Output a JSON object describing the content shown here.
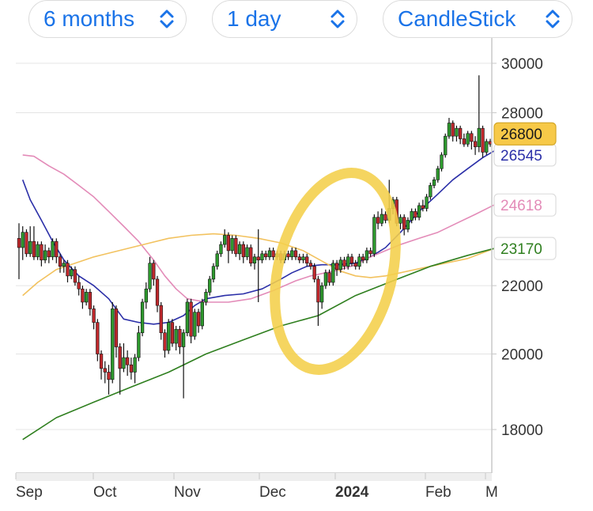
{
  "toolbar": {
    "range": {
      "label": "6 months",
      "icon": "chevron-updown-icon"
    },
    "interval": {
      "label": "1 day",
      "icon": "chevron-updown-icon"
    },
    "chart_type": {
      "label": "CandleStick",
      "icon": "chevron-updown-icon"
    }
  },
  "colors": {
    "accent": "#1a73e8",
    "up": "#2e9a2e",
    "down": "#c0282c",
    "ma_blue": "#2b2fa8",
    "ma_pink": "#e38bb8",
    "ma_orange": "#f2c25f",
    "ma_green": "#2f7f1f",
    "highlight": "#f4cf4a"
  },
  "chart_data": {
    "type": "candlestick",
    "y_axis": {
      "ticks": [
        "30000",
        "28000",
        "22000",
        "20000",
        "18000"
      ]
    },
    "x_axis": {
      "ticks": [
        "Sep",
        "Oct",
        "Nov",
        "Dec",
        "2024",
        "Feb",
        "M"
      ]
    },
    "price_tags": [
      {
        "text": "26800",
        "value": 26800,
        "style": "current"
      },
      {
        "text": "26545",
        "value": 26545,
        "style": "ma_blue"
      },
      {
        "text": "24618",
        "value": 24618,
        "style": "ma_pink"
      },
      {
        "text": "23170",
        "value": 23170,
        "style": "ma_green"
      }
    ],
    "series": [
      {
        "color_key": "ma_blue",
        "points": [
          [
            1,
            25500
          ],
          [
            3,
            24800
          ],
          [
            6,
            24100
          ],
          [
            9,
            23400
          ],
          [
            12,
            22800
          ],
          [
            16,
            22300
          ],
          [
            20,
            22000
          ],
          [
            24,
            21600
          ],
          [
            28,
            21000
          ],
          [
            32,
            20900
          ],
          [
            36,
            20850
          ],
          [
            40,
            20900
          ],
          [
            44,
            21100
          ],
          [
            47,
            21400
          ],
          [
            50,
            21600
          ],
          [
            55,
            21700
          ],
          [
            60,
            21750
          ],
          [
            65,
            21900
          ],
          [
            70,
            22200
          ],
          [
            73,
            22400
          ],
          [
            77,
            22600
          ],
          [
            81,
            22650
          ],
          [
            85,
            22650
          ],
          [
            90,
            22700
          ],
          [
            94,
            22900
          ],
          [
            98,
            23200
          ],
          [
            102,
            23700
          ],
          [
            107,
            24400
          ],
          [
            112,
            25000
          ],
          [
            116,
            25500
          ],
          [
            120,
            25900
          ],
          [
            124,
            26300
          ],
          [
            127,
            26545
          ]
        ]
      },
      {
        "color_key": "ma_pink",
        "points": [
          [
            1,
            26400
          ],
          [
            4,
            26350
          ],
          [
            8,
            26000
          ],
          [
            12,
            25700
          ],
          [
            16,
            25300
          ],
          [
            20,
            24900
          ],
          [
            24,
            24400
          ],
          [
            28,
            23900
          ],
          [
            32,
            23400
          ],
          [
            36,
            22800
          ],
          [
            39,
            22300
          ],
          [
            42,
            21900
          ],
          [
            45,
            21600
          ],
          [
            50,
            21500
          ],
          [
            56,
            21500
          ],
          [
            62,
            21600
          ],
          [
            68,
            21850
          ],
          [
            74,
            22150
          ],
          [
            78,
            22300
          ],
          [
            82,
            22400
          ],
          [
            86,
            22500
          ],
          [
            90,
            22650
          ],
          [
            94,
            22900
          ],
          [
            98,
            23100
          ],
          [
            102,
            23300
          ],
          [
            107,
            23500
          ],
          [
            112,
            23700
          ],
          [
            117,
            24000
          ],
          [
            122,
            24300
          ],
          [
            127,
            24618
          ]
        ]
      },
      {
        "color_key": "ma_orange",
        "points": [
          [
            1,
            21700
          ],
          [
            5,
            22100
          ],
          [
            10,
            22500
          ],
          [
            15,
            22700
          ],
          [
            20,
            22900
          ],
          [
            25,
            23050
          ],
          [
            30,
            23200
          ],
          [
            35,
            23350
          ],
          [
            40,
            23500
          ],
          [
            46,
            23600
          ],
          [
            52,
            23650
          ],
          [
            58,
            23600
          ],
          [
            64,
            23500
          ],
          [
            70,
            23350
          ],
          [
            76,
            23100
          ],
          [
            82,
            22700
          ],
          [
            86,
            22450
          ],
          [
            90,
            22300
          ],
          [
            94,
            22250
          ],
          [
            98,
            22300
          ],
          [
            102,
            22400
          ],
          [
            108,
            22550
          ],
          [
            114,
            22700
          ],
          [
            120,
            22850
          ],
          [
            127,
            23170
          ]
        ]
      },
      {
        "color_key": "ma_green",
        "points": [
          [
            1,
            17750
          ],
          [
            10,
            18300
          ],
          [
            20,
            18700
          ],
          [
            30,
            19100
          ],
          [
            40,
            19500
          ],
          [
            50,
            20000
          ],
          [
            60,
            20400
          ],
          [
            70,
            20800
          ],
          [
            80,
            21100
          ],
          [
            90,
            21700
          ],
          [
            100,
            22150
          ],
          [
            110,
            22600
          ],
          [
            120,
            22950
          ],
          [
            127,
            23170
          ]
        ]
      }
    ],
    "candles": [
      {
        "o": 23500,
        "c": 23200,
        "h": 24000,
        "l": 22200
      },
      {
        "o": 23200,
        "c": 23700,
        "h": 23900,
        "l": 22800
      },
      {
        "o": 23700,
        "c": 23000,
        "h": 23800,
        "l": 22900
      },
      {
        "o": 23000,
        "c": 23400,
        "h": 23900,
        "l": 22900
      },
      {
        "o": 23400,
        "c": 22900,
        "h": 23900,
        "l": 22800
      },
      {
        "o": 22900,
        "c": 23300,
        "h": 23400,
        "l": 22800
      },
      {
        "o": 23300,
        "c": 22800,
        "h": 23400,
        "l": 22600
      },
      {
        "o": 22800,
        "c": 23100,
        "h": 23300,
        "l": 22700
      },
      {
        "o": 23100,
        "c": 22900,
        "h": 23200,
        "l": 22700
      },
      {
        "o": 22900,
        "c": 23400,
        "h": 23500,
        "l": 22800
      },
      {
        "o": 23400,
        "c": 22900,
        "h": 23500,
        "l": 22700
      },
      {
        "o": 22900,
        "c": 22600,
        "h": 23000,
        "l": 22400
      },
      {
        "o": 22600,
        "c": 22700,
        "h": 22800,
        "l": 22400
      },
      {
        "o": 22700,
        "c": 22300,
        "h": 22800,
        "l": 22100
      },
      {
        "o": 22300,
        "c": 22500,
        "h": 22600,
        "l": 22200
      },
      {
        "o": 22500,
        "c": 22100,
        "h": 22600,
        "l": 22000
      },
      {
        "o": 22100,
        "c": 21900,
        "h": 22300,
        "l": 21700
      },
      {
        "o": 21900,
        "c": 21500,
        "h": 22000,
        "l": 21300
      },
      {
        "o": 21500,
        "c": 21800,
        "h": 21900,
        "l": 21400
      },
      {
        "o": 21800,
        "c": 21300,
        "h": 21900,
        "l": 21100
      },
      {
        "o": 21300,
        "c": 20900,
        "h": 21400,
        "l": 20700
      },
      {
        "o": 20900,
        "c": 20000,
        "h": 21000,
        "l": 19800
      },
      {
        "o": 20000,
        "c": 19600,
        "h": 20100,
        "l": 19300
      },
      {
        "o": 19600,
        "c": 19500,
        "h": 19800,
        "l": 19200
      },
      {
        "o": 19500,
        "c": 19300,
        "h": 19700,
        "l": 18900
      },
      {
        "o": 19300,
        "c": 21300,
        "h": 21500,
        "l": 19200
      },
      {
        "o": 21300,
        "c": 20200,
        "h": 21400,
        "l": 19900
      },
      {
        "o": 20200,
        "c": 19600,
        "h": 20300,
        "l": 18900
      },
      {
        "o": 19600,
        "c": 19900,
        "h": 20300,
        "l": 19500
      },
      {
        "o": 19900,
        "c": 19700,
        "h": 20100,
        "l": 19400
      },
      {
        "o": 19700,
        "c": 19500,
        "h": 19900,
        "l": 19300
      },
      {
        "o": 19500,
        "c": 19900,
        "h": 20000,
        "l": 19200
      },
      {
        "o": 19900,
        "c": 20600,
        "h": 20800,
        "l": 19800
      },
      {
        "o": 20600,
        "c": 21500,
        "h": 21600,
        "l": 20500
      },
      {
        "o": 21500,
        "c": 21900,
        "h": 22100,
        "l": 21300
      },
      {
        "o": 21900,
        "c": 22700,
        "h": 22900,
        "l": 21800
      },
      {
        "o": 22700,
        "c": 22200,
        "h": 22800,
        "l": 22000
      },
      {
        "o": 22200,
        "c": 21400,
        "h": 22300,
        "l": 21200
      },
      {
        "o": 21400,
        "c": 20600,
        "h": 21500,
        "l": 20400
      },
      {
        "o": 20600,
        "c": 20100,
        "h": 20700,
        "l": 19900
      },
      {
        "o": 20100,
        "c": 20900,
        "h": 21000,
        "l": 20000
      },
      {
        "o": 20900,
        "c": 20300,
        "h": 21000,
        "l": 20200
      },
      {
        "o": 20300,
        "c": 20700,
        "h": 20800,
        "l": 20100
      },
      {
        "o": 20700,
        "c": 20200,
        "h": 20800,
        "l": 20000
      },
      {
        "o": 20200,
        "c": 20600,
        "h": 20700,
        "l": 18800
      },
      {
        "o": 20600,
        "c": 21500,
        "h": 21600,
        "l": 20500
      },
      {
        "o": 21500,
        "c": 20500,
        "h": 21600,
        "l": 20300
      },
      {
        "o": 20500,
        "c": 21200,
        "h": 21300,
        "l": 20400
      },
      {
        "o": 21200,
        "c": 20800,
        "h": 21300,
        "l": 20600
      },
      {
        "o": 20800,
        "c": 21500,
        "h": 21600,
        "l": 20700
      },
      {
        "o": 21500,
        "c": 21800,
        "h": 21900,
        "l": 21400
      },
      {
        "o": 21800,
        "c": 22200,
        "h": 22300,
        "l": 21700
      },
      {
        "o": 22200,
        "c": 22600,
        "h": 22700,
        "l": 22100
      },
      {
        "o": 22600,
        "c": 23000,
        "h": 23100,
        "l": 22500
      },
      {
        "o": 23000,
        "c": 23300,
        "h": 23400,
        "l": 22900
      },
      {
        "o": 23300,
        "c": 23600,
        "h": 23800,
        "l": 23200
      },
      {
        "o": 23600,
        "c": 23100,
        "h": 23700,
        "l": 22700
      },
      {
        "o": 23100,
        "c": 23500,
        "h": 23600,
        "l": 23000
      },
      {
        "o": 23500,
        "c": 23000,
        "h": 23600,
        "l": 22900
      },
      {
        "o": 23000,
        "c": 23300,
        "h": 23400,
        "l": 22800
      },
      {
        "o": 23300,
        "c": 22900,
        "h": 23400,
        "l": 22700
      },
      {
        "o": 22900,
        "c": 23200,
        "h": 23300,
        "l": 22800
      },
      {
        "o": 23200,
        "c": 22700,
        "h": 23300,
        "l": 22600
      },
      {
        "o": 22700,
        "c": 22900,
        "h": 23000,
        "l": 22500
      },
      {
        "o": 22900,
        "c": 22800,
        "h": 23800,
        "l": 21500
      },
      {
        "o": 22800,
        "c": 23000,
        "h": 23100,
        "l": 22700
      },
      {
        "o": 23000,
        "c": 22900,
        "h": 23100,
        "l": 22800
      },
      {
        "o": 22900,
        "c": 23100,
        "h": 23200,
        "l": 22800
      },
      {
        "o": 23100,
        "c": 22900,
        "h": 23200,
        "l": 22800
      },
      {
        "o": 22900,
        "c": 23000,
        "h": 23100,
        "l": 22800
      },
      {
        "o": 23000,
        "c": 22800,
        "h": 23100,
        "l": 22700
      },
      {
        "o": 22800,
        "c": 23000,
        "h": 23100,
        "l": 22700
      },
      {
        "o": 23000,
        "c": 22900,
        "h": 23100,
        "l": 22800
      },
      {
        "o": 22900,
        "c": 23100,
        "h": 23200,
        "l": 22800
      },
      {
        "o": 23100,
        "c": 22900,
        "h": 23200,
        "l": 22800
      },
      {
        "o": 22900,
        "c": 22800,
        "h": 23000,
        "l": 22700
      },
      {
        "o": 22800,
        "c": 22900,
        "h": 23000,
        "l": 22700
      },
      {
        "o": 22900,
        "c": 22700,
        "h": 23000,
        "l": 22600
      },
      {
        "o": 22700,
        "c": 22600,
        "h": 22800,
        "l": 22500
      },
      {
        "o": 22600,
        "c": 22200,
        "h": 22700,
        "l": 22100
      },
      {
        "o": 22200,
        "c": 21500,
        "h": 22300,
        "l": 20800
      },
      {
        "o": 21500,
        "c": 22000,
        "h": 22100,
        "l": 21300
      },
      {
        "o": 22000,
        "c": 22400,
        "h": 22500,
        "l": 21900
      },
      {
        "o": 22400,
        "c": 22100,
        "h": 22500,
        "l": 22000
      },
      {
        "o": 22100,
        "c": 22700,
        "h": 22800,
        "l": 22000
      },
      {
        "o": 22700,
        "c": 22500,
        "h": 22800,
        "l": 22300
      },
      {
        "o": 22500,
        "c": 22800,
        "h": 22900,
        "l": 22400
      },
      {
        "o": 22800,
        "c": 22600,
        "h": 22900,
        "l": 22500
      },
      {
        "o": 22600,
        "c": 22900,
        "h": 23000,
        "l": 22500
      },
      {
        "o": 22900,
        "c": 22700,
        "h": 23000,
        "l": 22600
      },
      {
        "o": 22700,
        "c": 22600,
        "h": 22800,
        "l": 22500
      },
      {
        "o": 22600,
        "c": 22900,
        "h": 23000,
        "l": 22500
      },
      {
        "o": 22900,
        "c": 22800,
        "h": 23000,
        "l": 22700
      },
      {
        "o": 22800,
        "c": 23100,
        "h": 23200,
        "l": 22700
      },
      {
        "o": 23100,
        "c": 23000,
        "h": 23200,
        "l": 22900
      },
      {
        "o": 23000,
        "c": 24200,
        "h": 24300,
        "l": 22900
      },
      {
        "o": 24200,
        "c": 24000,
        "h": 24400,
        "l": 23800
      },
      {
        "o": 24000,
        "c": 24300,
        "h": 24500,
        "l": 23900
      },
      {
        "o": 24300,
        "c": 24100,
        "h": 24400,
        "l": 24000
      },
      {
        "o": 24100,
        "c": 24500,
        "h": 25500,
        "l": 24000
      },
      {
        "o": 24500,
        "c": 24800,
        "h": 24900,
        "l": 24300
      },
      {
        "o": 24800,
        "c": 24000,
        "h": 24900,
        "l": 23900
      },
      {
        "o": 24000,
        "c": 24200,
        "h": 24300,
        "l": 23800
      },
      {
        "o": 24200,
        "c": 23800,
        "h": 24300,
        "l": 23600
      },
      {
        "o": 23800,
        "c": 24100,
        "h": 24200,
        "l": 23700
      },
      {
        "o": 24100,
        "c": 24400,
        "h": 24500,
        "l": 24000
      },
      {
        "o": 24400,
        "c": 24200,
        "h": 24500,
        "l": 24100
      },
      {
        "o": 24200,
        "c": 24600,
        "h": 24700,
        "l": 24100
      },
      {
        "o": 24600,
        "c": 24500,
        "h": 24800,
        "l": 24400
      },
      {
        "o": 24500,
        "c": 24900,
        "h": 25000,
        "l": 24400
      },
      {
        "o": 24900,
        "c": 25300,
        "h": 25400,
        "l": 24800
      },
      {
        "o": 25300,
        "c": 25500,
        "h": 25600,
        "l": 25200
      },
      {
        "o": 25500,
        "c": 25900,
        "h": 26000,
        "l": 25400
      },
      {
        "o": 25900,
        "c": 26400,
        "h": 26500,
        "l": 25800
      },
      {
        "o": 26400,
        "c": 27100,
        "h": 27200,
        "l": 26300
      },
      {
        "o": 27100,
        "c": 27600,
        "h": 27800,
        "l": 27000
      },
      {
        "o": 27600,
        "c": 27100,
        "h": 27700,
        "l": 26900
      },
      {
        "o": 27100,
        "c": 27400,
        "h": 27500,
        "l": 26900
      },
      {
        "o": 27400,
        "c": 27000,
        "h": 27500,
        "l": 26800
      },
      {
        "o": 27000,
        "c": 26800,
        "h": 27200,
        "l": 26700
      },
      {
        "o": 26800,
        "c": 27200,
        "h": 27300,
        "l": 26700
      },
      {
        "o": 27200,
        "c": 26900,
        "h": 27300,
        "l": 26600
      },
      {
        "o": 26900,
        "c": 26700,
        "h": 27100,
        "l": 26400
      },
      {
        "o": 26700,
        "c": 27400,
        "h": 29500,
        "l": 26500
      },
      {
        "o": 27400,
        "c": 26500,
        "h": 27500,
        "l": 26300
      },
      {
        "o": 26500,
        "c": 26900,
        "h": 27000,
        "l": 26400
      },
      {
        "o": 26900,
        "c": 26800,
        "h": 27000,
        "l": 26700
      }
    ]
  }
}
